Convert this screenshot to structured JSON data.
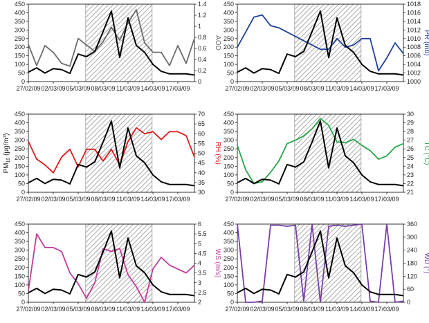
{
  "colors": {
    "pm10": "#000000",
    "aod": "#6b6b6b",
    "pr": "#1f3f99",
    "rh": "#e0191b",
    "tc": "#27a74a",
    "ws": "#c23b9a",
    "wd": "#7a3fa6"
  },
  "left_axis": {
    "label_main": "PM",
    "label_sub": "10",
    "label_rest": " (μg/m³)",
    "range": [
      0,
      450
    ],
    "ticks": [
      "0",
      "50",
      "100",
      "150",
      "200",
      "250",
      "300",
      "350",
      "400",
      "450"
    ]
  },
  "chart_data": [
    {
      "type": "line",
      "panel": "top-left",
      "x_ticks": [
        "27/02/09",
        "02/03/09",
        "05/03/09",
        "08/03/09",
        "11/03/09",
        "14/03/09",
        "17/03/09"
      ],
      "shaded_range": [
        "06/03/09",
        "14/03/09"
      ],
      "ylim_left": [
        0,
        450
      ],
      "ylim_right": [
        0,
        1.4
      ],
      "right_label": "AOD",
      "right_ticks": [
        "0",
        "0.2",
        "0.4",
        "0.6",
        "0.8",
        "1",
        "1.2",
        "1.4"
      ],
      "series": [
        {
          "axis": "left",
          "values": [
            55,
            80,
            50,
            75,
            70,
            48,
            160,
            145,
            175,
            290,
            410,
            140,
            370,
            210,
            170,
            100,
            60,
            45,
            45,
            45,
            38
          ]
        },
        {
          "axis": "right",
          "values": [
            0.67,
            0.29,
            0.65,
            0.53,
            0.33,
            0.28,
            0.78,
            0.66,
            0.55,
            0.72,
            0.98,
            0.75,
            1.06,
            1.3,
            0.7,
            0.53,
            0.53,
            0.29,
            0.65,
            0.33,
            0.78
          ]
        }
      ]
    },
    {
      "type": "line",
      "panel": "top-right",
      "x_ticks": [
        "27/02/09",
        "02/03/09",
        "05/03/09",
        "08/03/09",
        "11/03/09",
        "14/03/09",
        "17/03/09"
      ],
      "shaded_range": [
        "06/03/09",
        "14/03/09"
      ],
      "ylim_left": [
        0,
        450
      ],
      "ylim_right": [
        1000,
        1018
      ],
      "right_label": "PR (mb)",
      "right_ticks": [
        "1000",
        "1002",
        "1004",
        "1006",
        "1008",
        "1010",
        "1012",
        "1014",
        "1016",
        "1018"
      ],
      "series": [
        {
          "axis": "left",
          "values": [
            55,
            80,
            50,
            75,
            70,
            48,
            160,
            145,
            175,
            290,
            410,
            140,
            370,
            210,
            170,
            100,
            60,
            45,
            45,
            45,
            38
          ]
        },
        {
          "axis": "right",
          "values": [
            1008,
            1011.5,
            1015,
            1015.5,
            1013,
            1012.5,
            1011.5,
            1010.5,
            1009.5,
            1008.5,
            1007.5,
            1007.5,
            1010,
            1008,
            1008.5,
            1010,
            1010,
            1002.5,
            1005.5,
            1009,
            1006.5
          ]
        }
      ]
    },
    {
      "type": "line",
      "panel": "middle-left",
      "x_ticks": [
        "27/02/09",
        "02/03/09",
        "05/03/09",
        "08/03/09",
        "11/03/09",
        "14/03/09",
        "17/03/09"
      ],
      "shaded_range": [
        "06/03/09",
        "14/03/09"
      ],
      "ylim_left": [
        0,
        450
      ],
      "ylim_right": [
        30,
        70
      ],
      "right_label": "RH (%)",
      "right_ticks": [
        "30",
        "35",
        "40",
        "45",
        "50",
        "55",
        "60",
        "65",
        "70"
      ],
      "series": [
        {
          "axis": "left",
          "values": [
            55,
            80,
            50,
            75,
            70,
            48,
            160,
            145,
            175,
            290,
            410,
            140,
            370,
            210,
            170,
            100,
            60,
            45,
            45,
            45,
            38
          ]
        },
        {
          "axis": "right",
          "values": [
            56,
            47,
            44,
            40,
            48,
            52,
            43,
            52,
            52,
            46,
            52,
            44,
            56,
            63,
            60,
            61,
            57,
            61,
            61,
            59,
            48
          ]
        }
      ]
    },
    {
      "type": "line",
      "panel": "middle-right",
      "x_ticks": [
        "27/02/09",
        "02/03/09",
        "05/03/09",
        "08/03/09",
        "11/03/09",
        "14/03/09",
        "17/03/09"
      ],
      "shaded_range": [
        "06/03/09",
        "14/03/09"
      ],
      "ylim_left": [
        0,
        450
      ],
      "ylim_right": [
        21,
        30
      ],
      "right_label": "TC (°C)",
      "right_ticks": [
        "21",
        "22",
        "23",
        "24",
        "25",
        "26",
        "27",
        "28",
        "29",
        "30"
      ],
      "series": [
        {
          "axis": "left",
          "values": [
            55,
            80,
            50,
            75,
            70,
            48,
            160,
            145,
            175,
            290,
            410,
            140,
            370,
            210,
            170,
            100,
            60,
            45,
            45,
            45,
            38
          ]
        },
        {
          "axis": "right",
          "values": [
            26.4,
            23.6,
            22.0,
            22.2,
            23.3,
            24.6,
            26.6,
            27.0,
            27.5,
            28.3,
            29.5,
            28.7,
            26.8,
            26.7,
            27.1,
            26.4,
            25.8,
            24.8,
            25.2,
            26.2,
            26.6
          ]
        }
      ]
    },
    {
      "type": "line",
      "panel": "bottom-left",
      "x_ticks": [
        "27/02/09",
        "02/03/09",
        "05/03/09",
        "08/03/09",
        "11/03/09",
        "14/03/09",
        "17/03/09"
      ],
      "shaded_range": [
        "06/03/09",
        "14/03/09"
      ],
      "ylim_left": [
        0,
        450
      ],
      "ylim_right": [
        2,
        6
      ],
      "right_label": "WS (m/s)",
      "right_ticks": [
        "2",
        "2.5",
        "3",
        "3.5",
        "4",
        "4.5",
        "5",
        "5.5",
        "6"
      ],
      "series": [
        {
          "axis": "left",
          "values": [
            55,
            80,
            50,
            75,
            70,
            48,
            160,
            145,
            175,
            290,
            410,
            140,
            370,
            210,
            170,
            100,
            60,
            45,
            45,
            45,
            38
          ]
        },
        {
          "axis": "right",
          "values": [
            2.6,
            5.5,
            4.8,
            4.8,
            4.6,
            3.5,
            2.95,
            2.2,
            3.0,
            4.75,
            4.6,
            4.75,
            3.4,
            2.8,
            2.0,
            3.7,
            4.3,
            3.9,
            3.7,
            3.5,
            3.9
          ]
        }
      ]
    },
    {
      "type": "line",
      "panel": "bottom-right",
      "x_ticks": [
        "27/02/09",
        "02/03/09",
        "05/03/09",
        "08/03/09",
        "11/03/09",
        "14/03/09",
        "17/03/09"
      ],
      "shaded_range": [
        "06/03/09",
        "14/03/09"
      ],
      "ylim_left": [
        0,
        450
      ],
      "ylim_right": [
        0,
        360
      ],
      "right_label": "WD (°)",
      "right_ticks": [
        "0",
        "60",
        "120",
        "180",
        "240",
        "300",
        "360"
      ],
      "series": [
        {
          "axis": "left",
          "values": [
            55,
            80,
            50,
            75,
            70,
            48,
            160,
            145,
            175,
            290,
            410,
            140,
            370,
            210,
            170,
            100,
            60,
            45,
            45,
            45,
            38
          ]
        },
        {
          "axis": "right",
          "values": [
            360,
            0,
            0,
            5,
            355,
            355,
            350,
            355,
            5,
            360,
            0,
            350,
            355,
            350,
            355,
            360,
            5,
            0,
            360,
            0,
            5
          ]
        }
      ]
    }
  ]
}
